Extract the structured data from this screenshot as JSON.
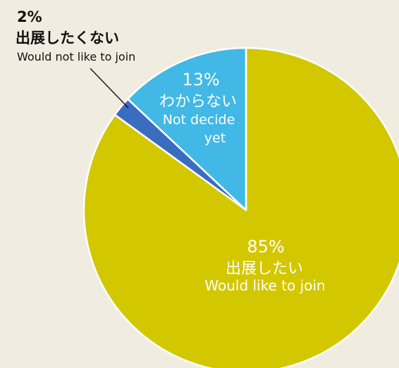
{
  "chart_data": {
    "type": "pie",
    "slices": [
      {
        "key": "yes",
        "value": 85,
        "percent_label": "85%",
        "label_ja": "出展したい",
        "label_en": "Would like to join",
        "color": "#d3c700"
      },
      {
        "key": "no",
        "value": 2,
        "percent_label": "2%",
        "label_ja": "出展したくない",
        "label_en": "Would not like to join",
        "color": "#3a6dbf"
      },
      {
        "key": "undecided",
        "value": 13,
        "percent_label": "13%",
        "label_ja": "わからない",
        "label_en_line1": "Not decide",
        "label_en_line2": "yet",
        "color": "#42b8e6"
      }
    ],
    "colors": {
      "background": "#f0ede0",
      "slice_border": "#ffffff",
      "label_light": "#ffffff",
      "label_dark": "#111111"
    }
  }
}
